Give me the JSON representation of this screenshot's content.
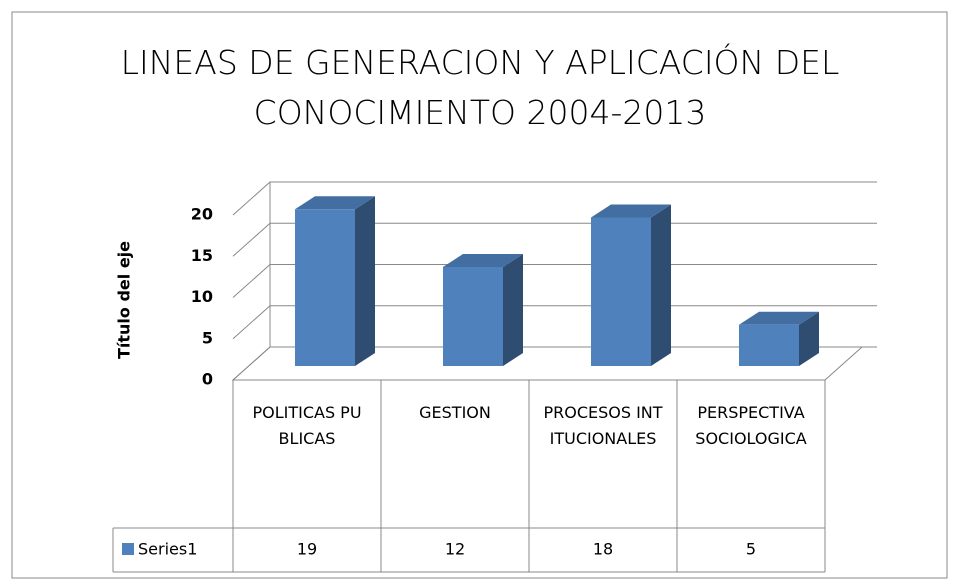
{
  "chart_data": {
    "type": "bar3d",
    "title": "LINEAS DE GENERACION Y APLICACIÓN DEL CONOCIMIENTO 2004-2013",
    "y_label": "Título del eje",
    "categories": [
      "POLITICAS PUBLICAS",
      "GESTION",
      "PROCESOS INTITUCIONALES",
      "PERSPECTIVA SOCIOLOGICA"
    ],
    "series": [
      {
        "name": "Series1",
        "color": "#4f81bd",
        "values": [
          19,
          12,
          18,
          5
        ]
      }
    ],
    "ylim": [
      0,
      20
    ],
    "yticks": [
      0,
      5,
      10,
      15,
      20
    ],
    "grid": true,
    "data_table": true
  }
}
